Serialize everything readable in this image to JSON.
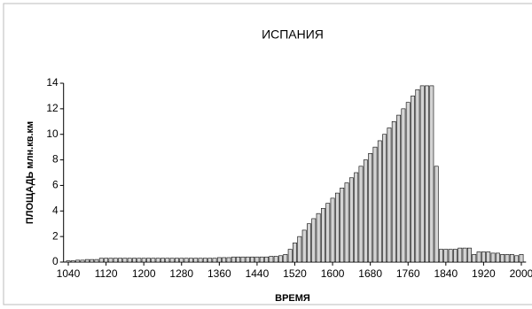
{
  "chart_data": {
    "type": "bar",
    "title": "ИСПАНИЯ",
    "ylabel": "ПЛОЩАДЬ млн.кв.км",
    "xlabel": "ВРЕМЯ",
    "x": [
      1040,
      1050,
      1060,
      1070,
      1080,
      1090,
      1100,
      1110,
      1120,
      1130,
      1140,
      1150,
      1160,
      1170,
      1180,
      1190,
      1200,
      1210,
      1220,
      1230,
      1240,
      1250,
      1260,
      1270,
      1280,
      1290,
      1300,
      1310,
      1320,
      1330,
      1340,
      1350,
      1360,
      1370,
      1380,
      1390,
      1400,
      1410,
      1420,
      1430,
      1440,
      1450,
      1460,
      1470,
      1480,
      1490,
      1500,
      1510,
      1520,
      1530,
      1540,
      1550,
      1560,
      1570,
      1580,
      1590,
      1600,
      1610,
      1620,
      1630,
      1640,
      1650,
      1660,
      1670,
      1680,
      1690,
      1700,
      1710,
      1720,
      1730,
      1740,
      1750,
      1760,
      1770,
      1780,
      1790,
      1800,
      1810,
      1820,
      1830,
      1840,
      1850,
      1860,
      1870,
      1880,
      1890,
      1900,
      1910,
      1920,
      1930,
      1940,
      1950,
      1960,
      1970,
      1980,
      1990,
      2000
    ],
    "values": [
      0.1,
      0.1,
      0.15,
      0.15,
      0.2,
      0.2,
      0.2,
      0.3,
      0.3,
      0.3,
      0.3,
      0.3,
      0.3,
      0.3,
      0.3,
      0.3,
      0.3,
      0.3,
      0.3,
      0.3,
      0.3,
      0.3,
      0.3,
      0.3,
      0.3,
      0.3,
      0.3,
      0.3,
      0.3,
      0.3,
      0.3,
      0.3,
      0.35,
      0.35,
      0.35,
      0.4,
      0.4,
      0.4,
      0.4,
      0.4,
      0.4,
      0.4,
      0.4,
      0.45,
      0.45,
      0.5,
      0.6,
      1.0,
      1.5,
      2.0,
      2.5,
      3.0,
      3.4,
      3.8,
      4.2,
      4.6,
      5.0,
      5.4,
      5.8,
      6.2,
      6.6,
      7.0,
      7.5,
      8.0,
      8.5,
      9.0,
      9.5,
      10.0,
      10.5,
      11.0,
      11.5,
      12.0,
      12.5,
      13.0,
      13.5,
      13.8,
      13.8,
      13.8,
      7.5,
      1.0,
      1.0,
      1.0,
      1.0,
      1.1,
      1.1,
      1.1,
      0.6,
      0.8,
      0.8,
      0.8,
      0.7,
      0.7,
      0.6,
      0.6,
      0.6,
      0.5,
      0.6
    ],
    "color": "#d4d4d4",
    "xlim": [
      1030,
      2010
    ],
    "xticks": [
      1040,
      1120,
      1200,
      1280,
      1360,
      1440,
      1520,
      1600,
      1680,
      1760,
      1840,
      1920,
      2000
    ],
    "ylim": [
      0,
      14
    ],
    "yticks": [
      0,
      2,
      4,
      6,
      8,
      10,
      12,
      14
    ]
  }
}
